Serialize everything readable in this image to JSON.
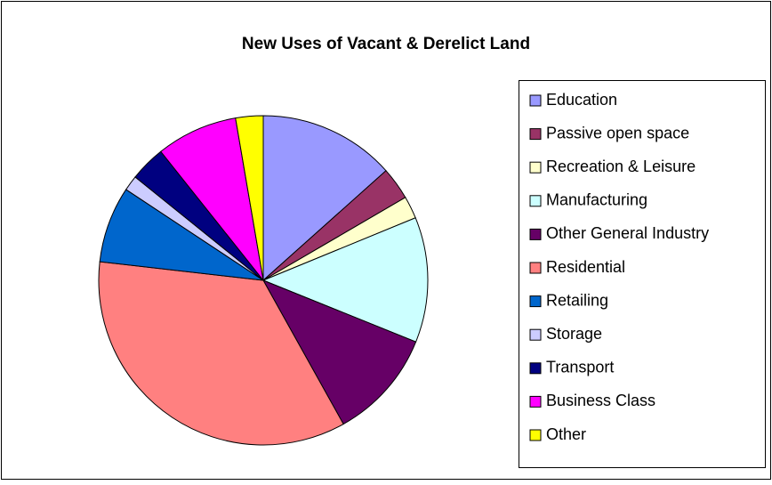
{
  "chart_data": {
    "type": "pie",
    "title": "New Uses of Vacant & Derelict Land",
    "categories": [
      "Education",
      "Passive open space",
      "Recreation & Leisure",
      "Manufacturing",
      "Other General Industry",
      "Residential",
      "Retailing",
      "Storage",
      "Transport",
      "Business Class",
      "Other"
    ],
    "values": [
      13.4,
      3.2,
      2.2,
      12.3,
      10.8,
      34.9,
      7.5,
      1.5,
      3.5,
      8,
      2.7
    ],
    "colors": [
      "#9999ff",
      "#993366",
      "#ffffcc",
      "#ccffff",
      "#660066",
      "#ff8080",
      "#0066cc",
      "#ccccff",
      "#000080",
      "#ff00ff",
      "#ffff00"
    ],
    "legend": "right"
  }
}
